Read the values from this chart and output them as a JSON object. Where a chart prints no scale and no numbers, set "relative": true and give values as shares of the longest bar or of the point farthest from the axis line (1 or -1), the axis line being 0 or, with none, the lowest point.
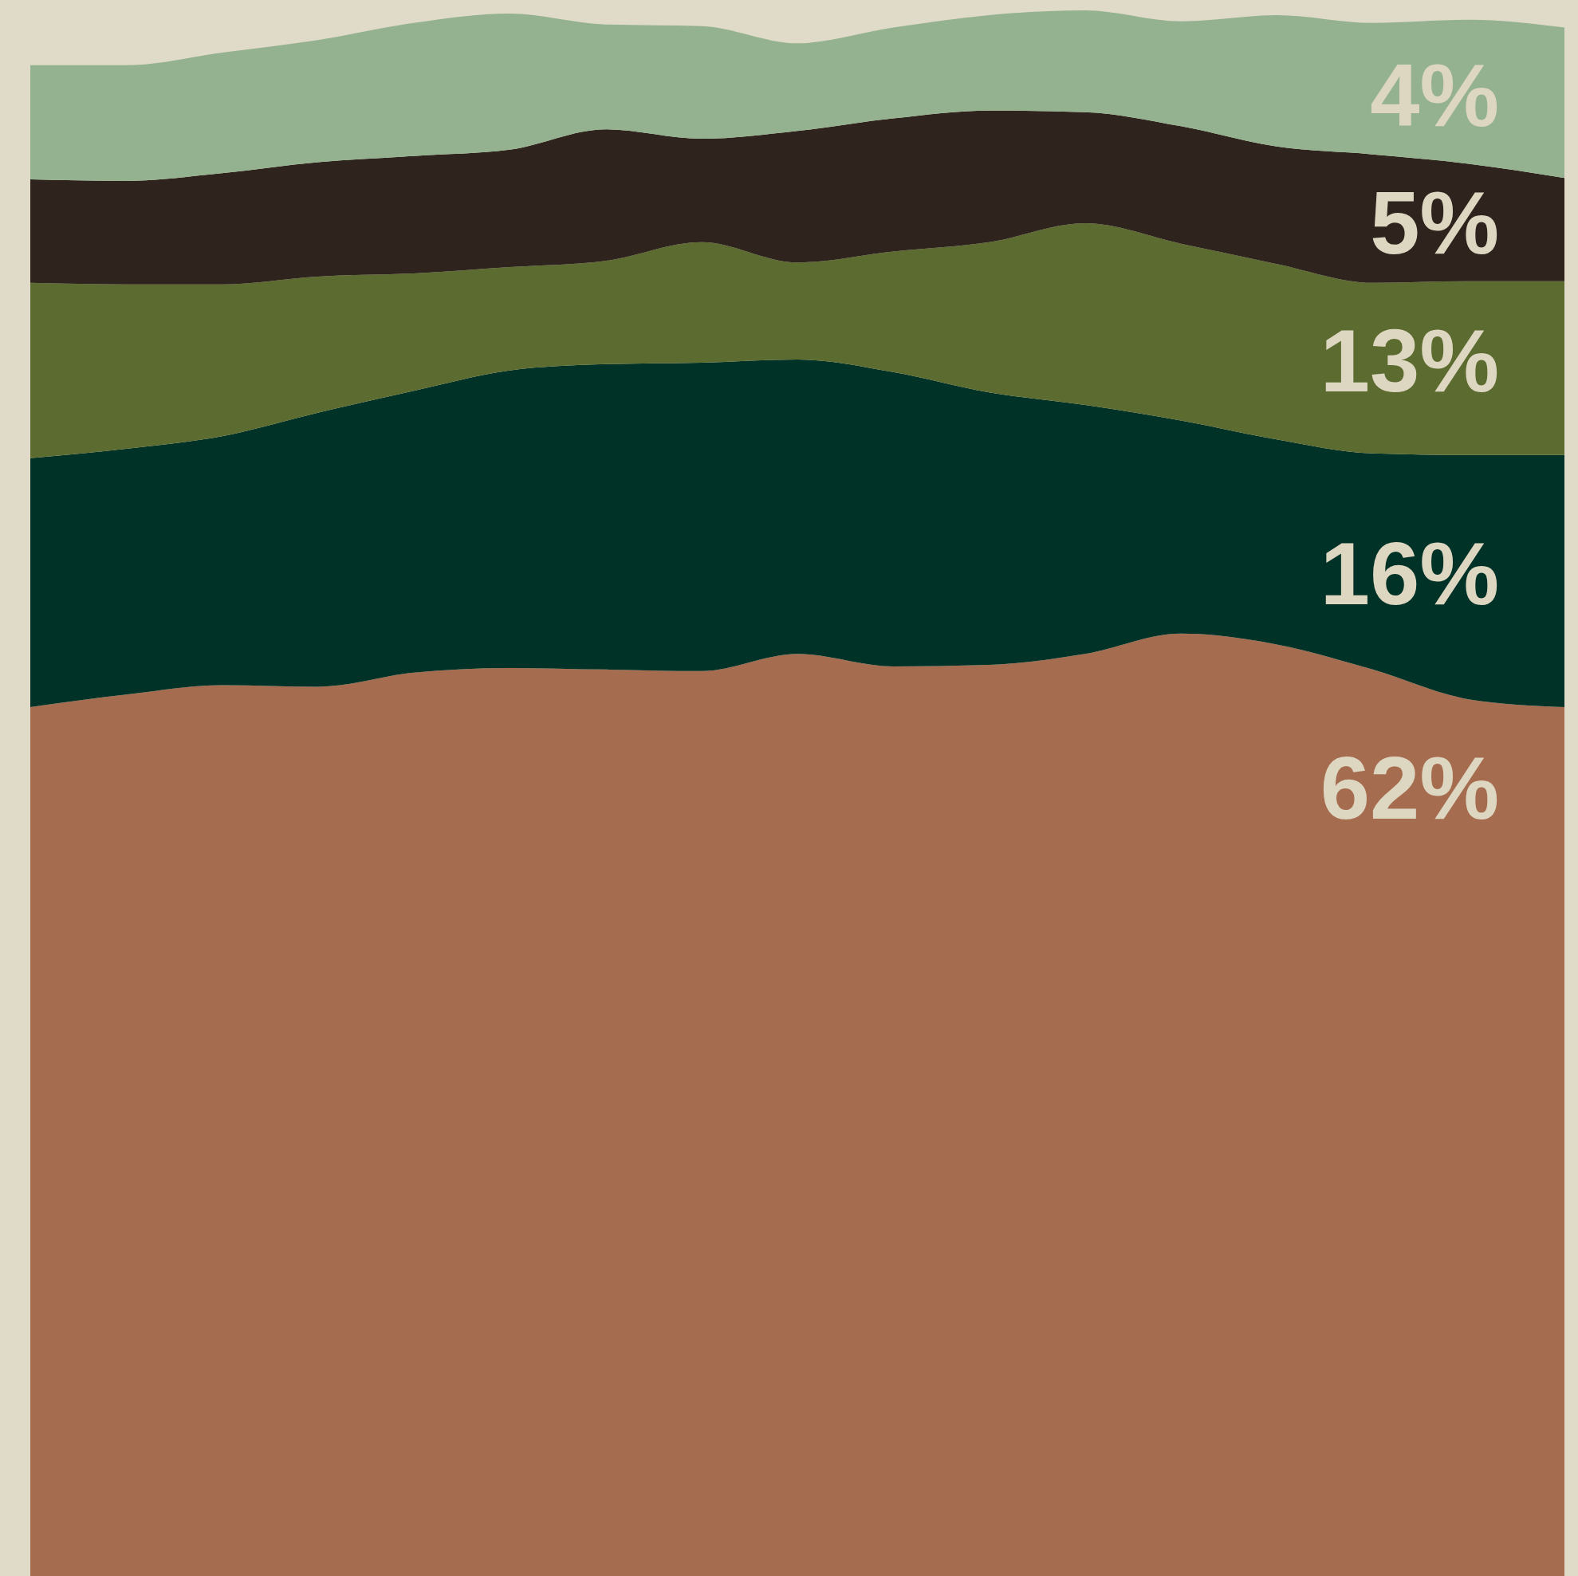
{
  "chart_data": {
    "type": "area",
    "stacked": true,
    "relative": true,
    "categories": [
      null,
      null,
      null,
      null,
      null,
      null,
      null,
      null,
      null,
      null,
      null,
      null,
      null,
      null,
      null,
      null,
      null
    ],
    "series": [
      {
        "color": "#a56c4f",
        "values": [
          0.555,
          0.563,
          0.569,
          0.568,
          0.577,
          0.58,
          0.579,
          0.578,
          0.589,
          0.581,
          0.582,
          0.589,
          0.602,
          0.595,
          0.579,
          0.56,
          0.555
        ]
      },
      {
        "color": "#003228",
        "values": [
          0.159,
          0.157,
          0.159,
          0.175,
          0.18,
          0.19,
          0.195,
          0.197,
          0.188,
          0.188,
          0.174,
          0.159,
          0.136,
          0.131,
          0.138,
          0.156,
          0.161
        ]
      },
      {
        "color": "#5c6b2f",
        "values": [
          0.112,
          0.105,
          0.097,
          0.087,
          0.075,
          0.066,
          0.066,
          0.077,
          0.062,
          0.077,
          0.096,
          0.116,
          0.113,
          0.112,
          0.109,
          0.111,
          0.111
        ]
      },
      {
        "color": "#2e241d",
        "values": [
          0.066,
          0.066,
          0.071,
          0.073,
          0.075,
          0.075,
          0.084,
          0.066,
          0.084,
          0.085,
          0.084,
          0.071,
          0.075,
          0.075,
          0.082,
          0.075,
          0.066
        ]
      },
      {
        "color": "#94b28f",
        "values": [
          0.073,
          0.074,
          0.077,
          0.078,
          0.085,
          0.087,
          0.067,
          0.072,
          0.056,
          0.058,
          0.061,
          0.065,
          0.067,
          0.084,
          0.084,
          0.092,
          0.096
        ]
      }
    ],
    "annotations": [
      "4%",
      "5%",
      "13%",
      "16%",
      "62%"
    ]
  }
}
